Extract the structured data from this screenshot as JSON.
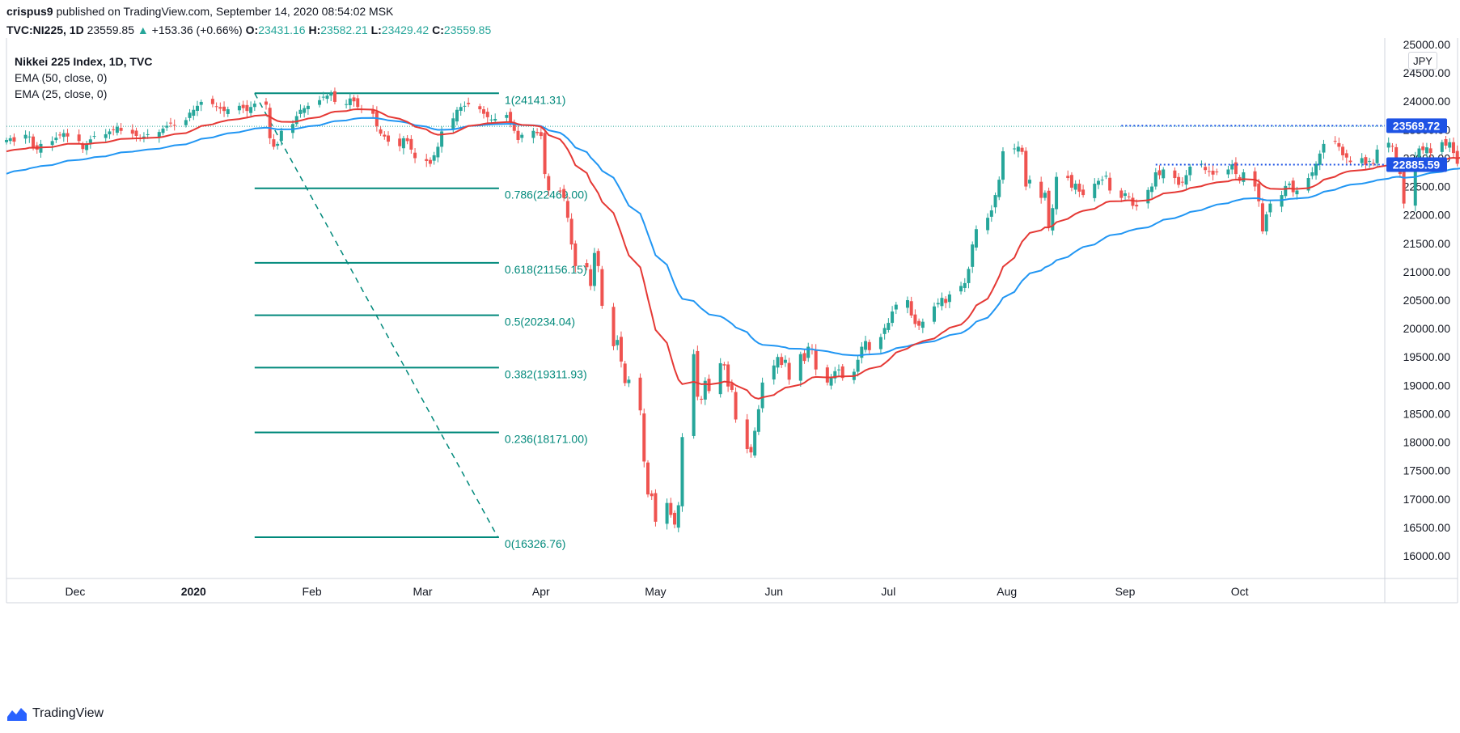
{
  "publisher": {
    "user": "crispus9",
    "text": " published on TradingView.com, September 14, 2020 08:54:02 MSK"
  },
  "quote": {
    "symbol": "TVC:NI225, 1D",
    "last": "23559.85",
    "arrow": "▲",
    "change": "+153.36 (+0.66%)",
    "o_label": "O:",
    "o": "23431.16",
    "h_label": "H:",
    "h": "23582.21",
    "l_label": "L:",
    "l": "23429.42",
    "c_label": "C:",
    "c": "23559.85"
  },
  "legend": {
    "title": "Nikkei 225 Index, 1D, TVC",
    "ema50": "EMA (50, close, 0)",
    "ema25": "EMA (25, close, 0)"
  },
  "currency": "JPY",
  "footer": {
    "brand": "TradingView",
    "logo_icon": "tradingview-logo-icon"
  },
  "colors": {
    "up": "#26a69a",
    "down": "#ef5350",
    "ema25": "#e53935",
    "ema50": "#2196f3",
    "fib": "#00897b",
    "price_badge": "#1e53e5"
  },
  "chart_data": {
    "type": "candlestick",
    "title": "Nikkei 225 Index, 1D, TVC",
    "ylim": [
      15600,
      25100
    ],
    "y_ticks": [
      "16000.00",
      "16500.00",
      "17000.00",
      "17500.00",
      "18000.00",
      "18500.00",
      "19000.00",
      "19500.00",
      "20000.00",
      "20500.00",
      "21000.00",
      "21500.00",
      "22000.00",
      "22500.00",
      "23000.00",
      "23500.00",
      "24000.00",
      "24500.00",
      "25000.00"
    ],
    "x_ticks": [
      {
        "label": "Dec",
        "date": "2019-12-01"
      },
      {
        "label": "2020",
        "date": "2020-01-01",
        "bold": true
      },
      {
        "label": "Feb",
        "date": "2020-02-01"
      },
      {
        "label": "Mar",
        "date": "2020-03-01"
      },
      {
        "label": "Apr",
        "date": "2020-04-01"
      },
      {
        "label": "May",
        "date": "2020-05-01"
      },
      {
        "label": "Jun",
        "date": "2020-06-01"
      },
      {
        "label": "Jul",
        "date": "2020-07-01"
      },
      {
        "label": "Aug",
        "date": "2020-08-01"
      },
      {
        "label": "Sep",
        "date": "2020-09-01"
      },
      {
        "label": "Oct",
        "date": "2020-10-01"
      }
    ],
    "date_range": [
      "2019-11-13",
      "2020-11-08"
    ],
    "closes": [
      23320,
      23350,
      23290,
      23410,
      23380,
      23190,
      23150,
      23250,
      23300,
      23360,
      23410,
      23440,
      23380,
      23300,
      23160,
      23250,
      23330,
      23390,
      23420,
      23470,
      23500,
      23550,
      23480,
      23430,
      23390,
      23340,
      23380,
      23420,
      23460,
      23520,
      23570,
      23620,
      23580,
      23670,
      23800,
      23850,
      23920,
      23990,
      23950,
      23900,
      23870,
      23830,
      23860,
      23920,
      23880,
      23830,
      23900,
      23960,
      23940,
      23350,
      23200,
      23250,
      23480,
      23600,
      23740,
      23850,
      23880,
      23920,
      24020,
      24080,
      24100,
      24140,
      23990,
      23950,
      24050,
      24000,
      23900,
      23850,
      23780,
      23560,
      23430,
      23380,
      23290,
      23210,
      23350,
      23300,
      23150,
      23000,
      22950,
      22900,
      23050,
      23200,
      23470,
      23700,
      23850,
      23900,
      23920,
      23950,
      23860,
      23780,
      23720,
      23680,
      23690,
      23760,
      23640,
      23480,
      23320,
      23410,
      23480,
      23440,
      23390,
      22720,
      22430,
      22420,
      22300,
      21950,
      21480,
      21100,
      21080,
      20750,
      21330,
      21100,
      20400,
      19690,
      19800,
      19420,
      19040,
      19100,
      18560,
      17660,
      17080,
      17050,
      16600,
      16930,
      16720,
      16550,
      16890,
      18090,
      19550,
      18800,
      18750,
      19080,
      18900,
      19390,
      19350,
      18980,
      18920,
      18400,
      17880,
      17820,
      18200,
      18580,
      19050,
      19350,
      19500,
      19360,
      19450,
      19100,
      19550,
      19430,
      19680,
      19630,
      19280,
      19050,
      19140,
      19250,
      19280,
      19130,
      19240,
      19450,
      19680,
      19780,
      19620,
      19850,
      20010,
      20100,
      20300,
      20420,
      20500,
      20230,
      20080,
      20050,
      20120,
      20390,
      20450,
      20540,
      20450,
      20600,
      20750,
      20800,
      21050,
      21480,
      21750,
      21950,
      22080,
      22350,
      22620,
      23120,
      23170,
      23200,
      23110,
      22500,
      22620,
      22300,
      22390,
      21780,
      22120,
      22670,
      22650,
      22480,
      22550,
      22410,
      22350,
      22550,
      22600,
      22620,
      22690,
      22430,
      22300,
      22380,
      22320,
      22160,
      22150,
      22440,
      22500,
      22750,
      22700,
      22800,
      22650,
      22530,
      22570,
      22700,
      22850,
      22900,
      22790,
      22760,
      22710,
      22750,
      22800,
      22890,
      22720,
      22600,
      22750,
      22500,
      22240,
      21710,
      22010,
      22200,
      22350,
      22510,
      22550,
      22400,
      22430,
      22650,
      22750,
      22900,
      23080,
      23250,
      23300,
      23200,
      23050,
      23010,
      22930,
      23000,
      22880,
      22950,
      22910,
      23150,
      23270,
      23210,
      22880,
      22720,
      22200,
      23010,
      23170,
      23140,
      23190,
      23090,
      23280,
      23220,
      23280,
      23090,
      22900,
      23330,
      23560
    ],
    "fib_levels": [
      {
        "ratio": "1",
        "value": 24141.31,
        "label": "1(24141.31)"
      },
      {
        "ratio": "0.786",
        "value": 22469.0,
        "label": "0.786(22469.00)"
      },
      {
        "ratio": "0.618",
        "value": 21156.15,
        "label": "0.618(21156.15)"
      },
      {
        "ratio": "0.5",
        "value": 20234.04,
        "label": "0.5(20234.04)"
      },
      {
        "ratio": "0.382",
        "value": 19311.93,
        "label": "0.382(19311.93)"
      },
      {
        "ratio": "0.236",
        "value": 18171.0,
        "label": "0.236(18171.00)"
      },
      {
        "ratio": "0",
        "value": 16326.76,
        "label": "0(16326.76)"
      }
    ],
    "fib_trend": {
      "from_date": "2020-01-17",
      "to_date": "2020-03-19"
    },
    "fib_extent_dates": [
      "2020-01-17",
      "2020-03-21"
    ],
    "markers": [
      {
        "value": 23569.72,
        "label": "23569.72",
        "from_date": "2020-08-31"
      },
      {
        "value": 22885.59,
        "label": "22885.59",
        "from_date": "2020-09-09"
      }
    ],
    "last_price": 23559.85
  }
}
